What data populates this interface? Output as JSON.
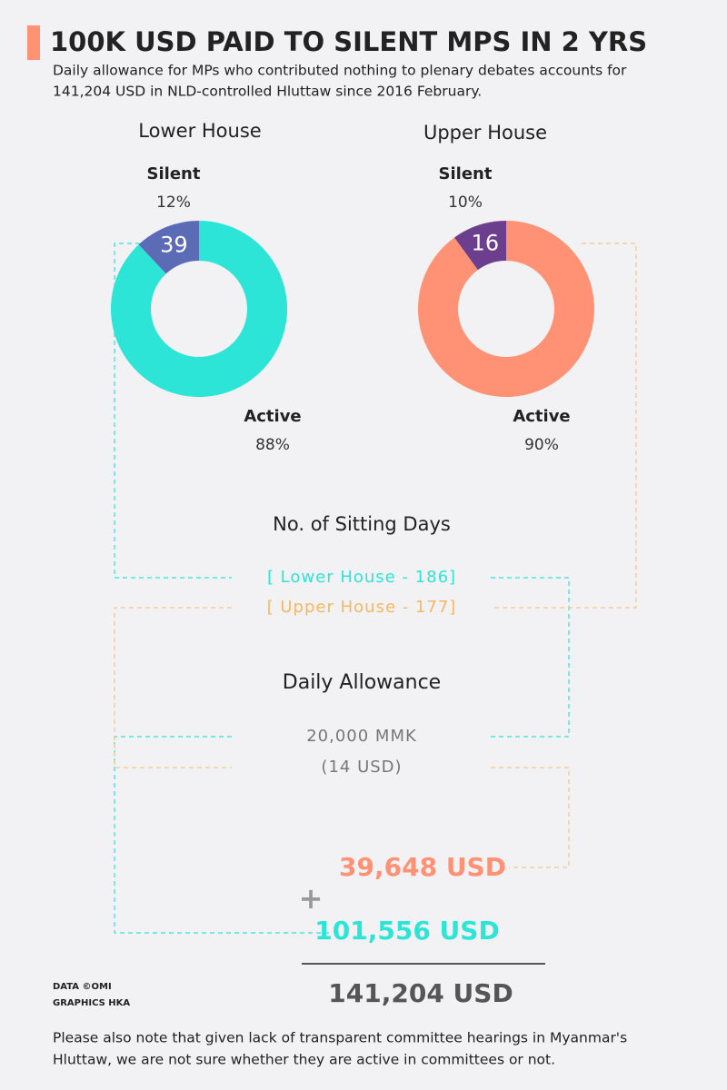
{
  "title": "100K USD PAID TO SILENT MPS IN 2 YRS",
  "subtitle": [
    "Daily allowance for MPs who contributed nothing to plenary debates accounts for",
    "141,204 USD in NLD-controlled Hluttaw since 2016 February."
  ],
  "chart_data": [
    {
      "type": "donut",
      "title": "Lower House",
      "categories": [
        "Silent",
        "Active"
      ],
      "values": [
        12,
        88
      ],
      "value_labels": [
        "12%",
        "88%"
      ],
      "counts": [
        39,
        null
      ],
      "colors": [
        "#5b6bb5",
        "#2de5d6"
      ]
    },
    {
      "type": "donut",
      "title": "Upper House",
      "categories": [
        "Silent",
        "Active"
      ],
      "values": [
        10,
        90
      ],
      "value_labels": [
        "10%",
        "90%"
      ],
      "counts": [
        16,
        null
      ],
      "colors": [
        "#6b3f8e",
        "#ff9274"
      ]
    }
  ],
  "sitting_days": {
    "heading": "No. of Sitting Days",
    "lower": "[ Lower House - 186]",
    "upper": "[ Upper House - 177]"
  },
  "allowance": {
    "heading": "Daily Allowance",
    "mmk": "20,000 MMK",
    "usd": "(14 USD)"
  },
  "totals": {
    "upper": "39,648 USD",
    "plus": "+",
    "lower": "101,556 USD",
    "sum": "141,204 USD"
  },
  "credits": [
    "DATA ©OMI",
    "GRAPHICS HKA"
  ],
  "note": [
    "Please also note that given lack of transparent committee hearings in Myanmar's",
    "Hluttaw, we are not sure whether they are active in committees or not."
  ]
}
